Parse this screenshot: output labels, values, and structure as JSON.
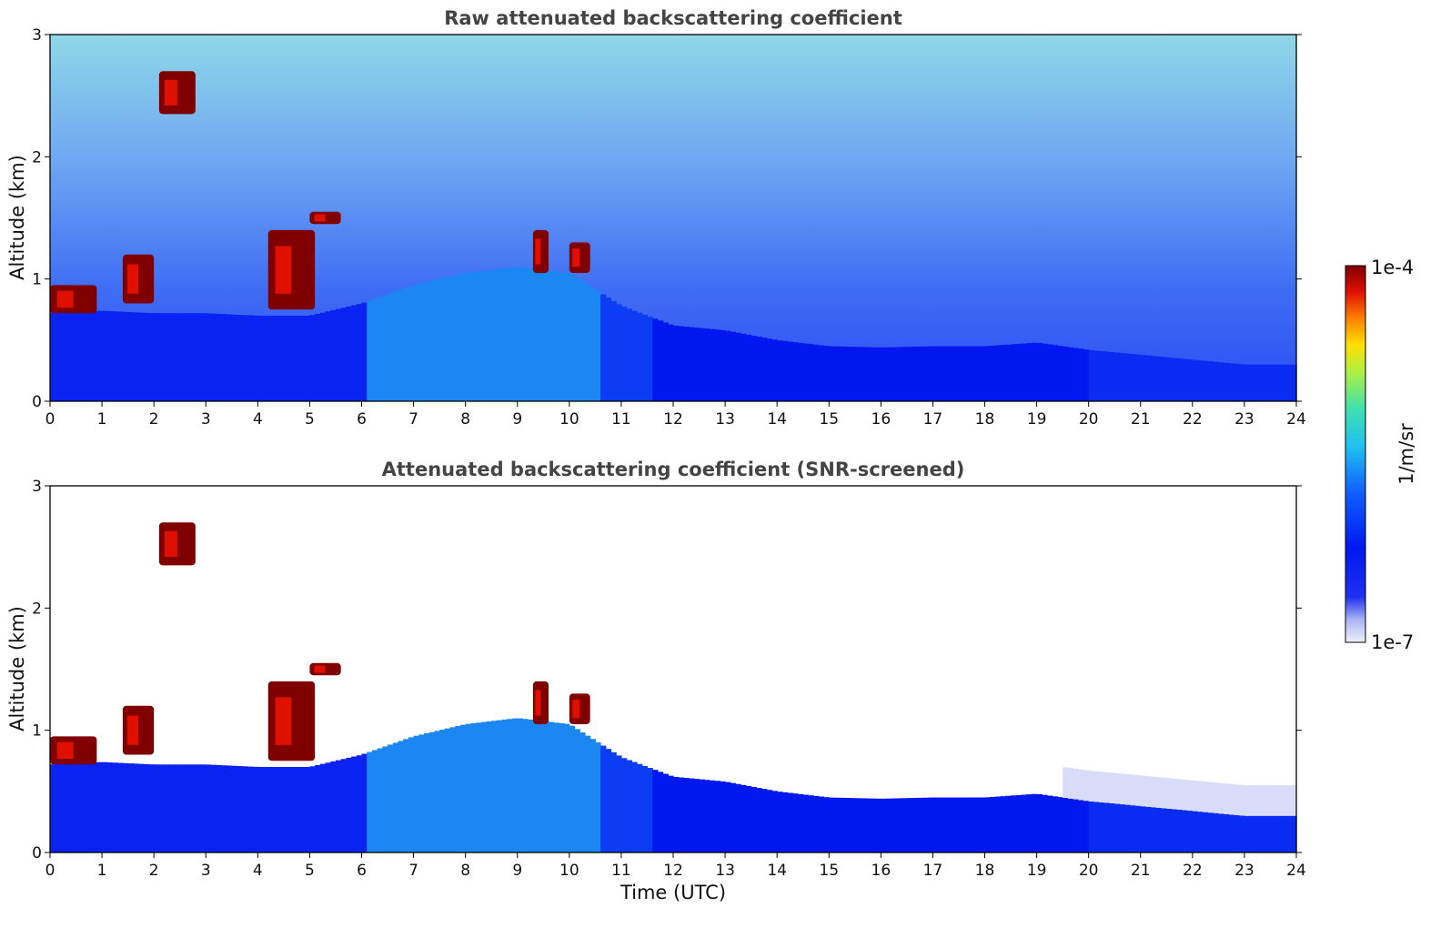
{
  "chart_data": [
    {
      "type": "heatmap",
      "title": "Raw attenuated backscattering coefficient",
      "xlabel": "",
      "ylabel": "Altitude (km)",
      "xlim": [
        0,
        24
      ],
      "ylim": [
        0,
        3
      ],
      "x_ticks": [
        0,
        1,
        2,
        3,
        4,
        5,
        6,
        7,
        8,
        9,
        10,
        11,
        12,
        13,
        14,
        15,
        16,
        17,
        18,
        19,
        20,
        21,
        22,
        23,
        24
      ],
      "y_ticks": [
        0,
        1,
        2,
        3
      ],
      "boundary_layer_top_km": [
        [
          0,
          0.72
        ],
        [
          1,
          0.74
        ],
        [
          2,
          0.72
        ],
        [
          3,
          0.72
        ],
        [
          4,
          0.7
        ],
        [
          5,
          0.7
        ],
        [
          6,
          0.8
        ],
        [
          7,
          0.95
        ],
        [
          8,
          1.05
        ],
        [
          9,
          1.1
        ],
        [
          10,
          1.05
        ],
        [
          11,
          0.78
        ],
        [
          12,
          0.62
        ],
        [
          13,
          0.58
        ],
        [
          14,
          0.5
        ],
        [
          15,
          0.45
        ],
        [
          16,
          0.44
        ],
        [
          17,
          0.45
        ],
        [
          18,
          0.45
        ],
        [
          19,
          0.48
        ],
        [
          20,
          0.42
        ],
        [
          21,
          0.38
        ],
        [
          22,
          0.34
        ],
        [
          23,
          0.3
        ],
        [
          24,
          0.3
        ]
      ],
      "cloud_patches": [
        {
          "t_start": 2.1,
          "t_end": 2.8,
          "alt_low_km": 2.35,
          "alt_high_km": 2.7
        },
        {
          "t_start": 5.0,
          "t_end": 5.6,
          "alt_low_km": 1.45,
          "alt_high_km": 1.55
        },
        {
          "t_start": 0.0,
          "t_end": 0.9,
          "alt_low_km": 0.72,
          "alt_high_km": 0.95
        },
        {
          "t_start": 1.4,
          "t_end": 2.0,
          "alt_low_km": 0.8,
          "alt_high_km": 1.2
        },
        {
          "t_start": 4.2,
          "t_end": 5.1,
          "alt_low_km": 0.75,
          "alt_high_km": 1.4
        },
        {
          "t_start": 9.3,
          "t_end": 9.6,
          "alt_low_km": 1.05,
          "alt_high_km": 1.4
        },
        {
          "t_start": 10.0,
          "t_end": 10.4,
          "alt_low_km": 1.05,
          "alt_high_km": 1.3
        }
      ]
    },
    {
      "type": "heatmap",
      "title": "Attenuated backscattering coefficient (SNR-screened)",
      "xlabel": "Time (UTC)",
      "ylabel": "Altitude (km)",
      "xlim": [
        0,
        24
      ],
      "ylim": [
        0,
        3
      ],
      "x_ticks": [
        0,
        1,
        2,
        3,
        4,
        5,
        6,
        7,
        8,
        9,
        10,
        11,
        12,
        13,
        14,
        15,
        16,
        17,
        18,
        19,
        20,
        21,
        22,
        23,
        24
      ],
      "y_ticks": [
        0,
        1,
        2,
        3
      ],
      "boundary_layer_top_km": [
        [
          0,
          0.72
        ],
        [
          1,
          0.74
        ],
        [
          2,
          0.72
        ],
        [
          3,
          0.72
        ],
        [
          4,
          0.7
        ],
        [
          5,
          0.7
        ],
        [
          6,
          0.8
        ],
        [
          7,
          0.95
        ],
        [
          8,
          1.05
        ],
        [
          9,
          1.1
        ],
        [
          10,
          1.05
        ],
        [
          11,
          0.78
        ],
        [
          12,
          0.62
        ],
        [
          13,
          0.58
        ],
        [
          14,
          0.5
        ],
        [
          15,
          0.45
        ],
        [
          16,
          0.44
        ],
        [
          17,
          0.45
        ],
        [
          18,
          0.45
        ],
        [
          19,
          0.48
        ],
        [
          20,
          0.42
        ],
        [
          21,
          0.38
        ],
        [
          22,
          0.34
        ],
        [
          23,
          0.3
        ],
        [
          24,
          0.3
        ]
      ],
      "cloud_patches": [
        {
          "t_start": 2.1,
          "t_end": 2.8,
          "alt_low_km": 2.35,
          "alt_high_km": 2.7
        },
        {
          "t_start": 5.0,
          "t_end": 5.6,
          "alt_low_km": 1.45,
          "alt_high_km": 1.55
        },
        {
          "t_start": 0.0,
          "t_end": 0.9,
          "alt_low_km": 0.72,
          "alt_high_km": 0.95
        },
        {
          "t_start": 1.4,
          "t_end": 2.0,
          "alt_low_km": 0.8,
          "alt_high_km": 1.2
        },
        {
          "t_start": 4.2,
          "t_end": 5.1,
          "alt_low_km": 0.75,
          "alt_high_km": 1.4
        },
        {
          "t_start": 9.3,
          "t_end": 9.6,
          "alt_low_km": 1.05,
          "alt_high_km": 1.4
        },
        {
          "t_start": 10.0,
          "t_end": 10.4,
          "alt_low_km": 1.05,
          "alt_high_km": 1.3
        }
      ]
    }
  ],
  "colorbar": {
    "label": "1/m/sr",
    "max_label": "1e-4",
    "min_label": "1e-7",
    "scale": "log",
    "colormap": "jet"
  },
  "colors": {
    "deep_red": "#800000",
    "red": "#e01000",
    "orange": "#ff8000",
    "yellow": "#ffe000",
    "green": "#50d860",
    "cyan": "#20c8e8",
    "mid_blue": "#1060ff",
    "blue": "#0018f0",
    "light_lavender": "#d8dcf8",
    "white": "#ffffff"
  }
}
